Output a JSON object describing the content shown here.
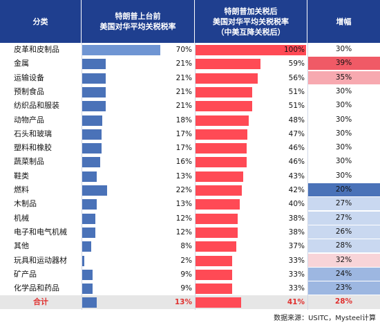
{
  "headers": {
    "category": "分类",
    "before": "特朗普上台前\n美国对华平均关税税率",
    "after": "特朗普加关税后\n美国对华平均关税税率\n（中美互降关税后）",
    "increase": "增幅"
  },
  "chart_data": {
    "type": "table",
    "columns": [
      "分类",
      "特朗普上台前美国对华平均关税税率",
      "特朗普加关税后美国对华平均关税税率（中美互降关税后）",
      "增幅"
    ],
    "rows": [
      {
        "category": "皮革和皮制品",
        "before": "70%",
        "after": "100%",
        "increase": "30%",
        "before_value": 70,
        "after_value": 100,
        "increase_value": 30
      },
      {
        "category": "金属",
        "before": "21%",
        "after": "59%",
        "increase": "39%",
        "before_value": 21,
        "after_value": 59,
        "increase_value": 39
      },
      {
        "category": "运输设备",
        "before": "21%",
        "after": "56%",
        "increase": "35%",
        "before_value": 21,
        "after_value": 56,
        "increase_value": 35
      },
      {
        "category": "预制食品",
        "before": "21%",
        "after": "51%",
        "increase": "30%",
        "before_value": 21,
        "after_value": 51,
        "increase_value": 30
      },
      {
        "category": "纺织品和服装",
        "before": "21%",
        "after": "51%",
        "increase": "30%",
        "before_value": 21,
        "after_value": 51,
        "increase_value": 30
      },
      {
        "category": "动物产品",
        "before": "18%",
        "after": "48%",
        "increase": "30%",
        "before_value": 18,
        "after_value": 48,
        "increase_value": 30
      },
      {
        "category": "石头和玻璃",
        "before": "17%",
        "after": "47%",
        "increase": "30%",
        "before_value": 17,
        "after_value": 47,
        "increase_value": 30
      },
      {
        "category": "塑料和橡胶",
        "before": "17%",
        "after": "46%",
        "increase": "30%",
        "before_value": 17,
        "after_value": 46,
        "increase_value": 30
      },
      {
        "category": "蔬菜制品",
        "before": "16%",
        "after": "46%",
        "increase": "30%",
        "before_value": 16,
        "after_value": 46,
        "increase_value": 30
      },
      {
        "category": "鞋类",
        "before": "13%",
        "after": "43%",
        "increase": "30%",
        "before_value": 13,
        "after_value": 43,
        "increase_value": 30
      },
      {
        "category": "燃料",
        "before": "22%",
        "after": "42%",
        "increase": "20%",
        "before_value": 22,
        "after_value": 42,
        "increase_value": 20
      },
      {
        "category": "木制品",
        "before": "13%",
        "after": "40%",
        "increase": "27%",
        "before_value": 13,
        "after_value": 40,
        "increase_value": 27
      },
      {
        "category": "机械",
        "before": "12%",
        "after": "38%",
        "increase": "27%",
        "before_value": 12,
        "after_value": 38,
        "increase_value": 27
      },
      {
        "category": "电子和电气机械",
        "before": "12%",
        "after": "38%",
        "increase": "26%",
        "before_value": 12,
        "after_value": 38,
        "increase_value": 26
      },
      {
        "category": "其他",
        "before": "8%",
        "after": "37%",
        "increase": "28%",
        "before_value": 8,
        "after_value": 37,
        "increase_value": 28
      },
      {
        "category": "玩具和运动器材",
        "before": "2%",
        "after": "33%",
        "increase": "32%",
        "before_value": 2,
        "after_value": 33,
        "increase_value": 32
      },
      {
        "category": "矿产品",
        "before": "9%",
        "after": "33%",
        "increase": "24%",
        "before_value": 9,
        "after_value": 33,
        "increase_value": 24
      },
      {
        "category": "化学品和药品",
        "before": "9%",
        "after": "33%",
        "increase": "23%",
        "before_value": 9,
        "after_value": 33,
        "increase_value": 23
      }
    ],
    "total": {
      "category": "合计",
      "before": "13%",
      "after": "41%",
      "increase": "28%",
      "before_value": 13,
      "after_value": 41,
      "increase_value": 28
    },
    "scale_max": 100
  },
  "colors": {
    "header_bg": "#1f3f8f",
    "before_bar": "#4a72b8",
    "before_bar_first": "#6f95d3",
    "after_bar": "#ff4a55",
    "total_text": "#e0312f",
    "total_row_bg": "#e6e6e6",
    "increase_heat_high": "#f05a66",
    "increase_heat_mid": "#f7a9b0",
    "increase_heat_low": "#f8d4d8",
    "increase_cool_strong": "#4a72b8",
    "increase_cool_mid": "#9db7e1",
    "increase_cool_light": "#c9d8f0"
  },
  "source_note": "数据来源：USITC，Mysteel计算"
}
